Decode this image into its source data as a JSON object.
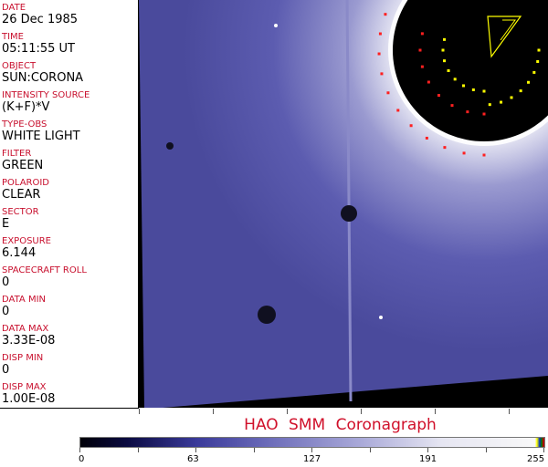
{
  "fields": [
    {
      "label": "DATE",
      "value": "26 Dec 1985"
    },
    {
      "label": "TIME",
      "value": "05:11:55 UT"
    },
    {
      "label": "OBJECT",
      "value": "SUN:CORONA"
    },
    {
      "label": "INTENSITY SOURCE",
      "value": "(K+F)*V"
    },
    {
      "label": "TYPE-OBS",
      "value": "WHITE LIGHT"
    },
    {
      "label": "FILTER",
      "value": "GREEN"
    },
    {
      "label": "POLAROID",
      "value": "CLEAR"
    },
    {
      "label": "SECTOR",
      "value": "E"
    },
    {
      "label": "EXPOSURE",
      "value": "6.144"
    },
    {
      "label": "SPACECRAFT ROLL",
      "value": "0"
    },
    {
      "label": "DATA MIN",
      "value": "0"
    },
    {
      "label": "DATA MAX",
      "value": "3.33E-08"
    },
    {
      "label": "DISP MIN",
      "value": "0"
    },
    {
      "label": "DISP MAX",
      "value": "1.00E-08"
    }
  ],
  "title": "HAO SMM Coronagraph",
  "colorbar": {
    "ticks": [
      "0",
      "63",
      "127",
      "191",
      "255"
    ],
    "min": 0,
    "max": 255
  },
  "colors": {
    "label": "#c8102e",
    "title": "#d0102a",
    "image_blue": "#5a5ab0"
  }
}
